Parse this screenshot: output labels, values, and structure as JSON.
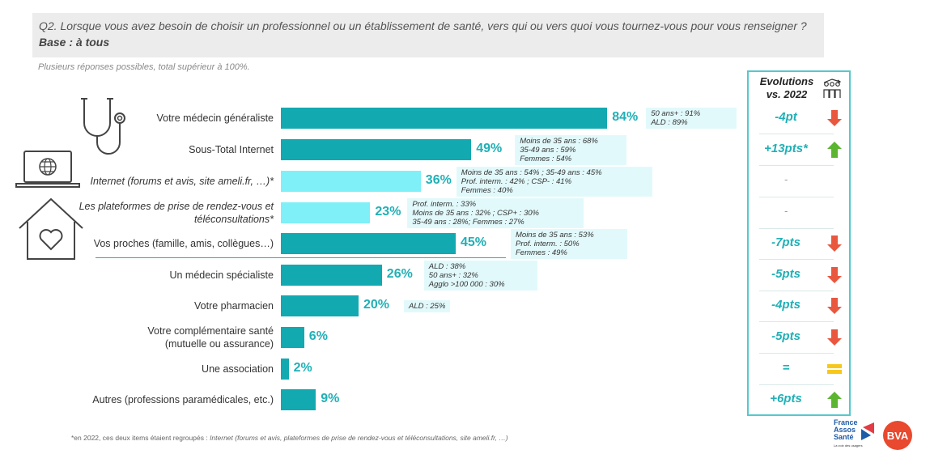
{
  "question": "Q2. Lorsque vous avez besoin de choisir un professionnel ou un établissement de santé, vers qui ou vers quoi vous tournez-vous pour vous renseigner ?",
  "base": "Base : à tous",
  "note": "Plusieurs réponses possibles, total supérieur à 100%.",
  "evolution_title": [
    "Evolutions",
    "vs. 2022"
  ],
  "footnote_prefix": "*en 2022, ces deux items étaient regroupés : ",
  "footnote_italic": "Internet (forums et avis, plateformes de prise de rendez-vous et téléconsultations, site ameli.fr, …)",
  "logos": {
    "france_assos": [
      "France",
      "Assos",
      "Santé",
      "La voix des usagers"
    ],
    "bva": "BVA"
  },
  "colors": {
    "bar_main": "#12a9b1",
    "bar_light": "#7ff0f7",
    "value_text": "#20b0b6",
    "down": "#e9573f",
    "up": "#5cb531",
    "equal": "#f7c81b"
  },
  "chart_data": {
    "type": "bar",
    "orientation": "horizontal",
    "unit": "%",
    "xlim": [
      0,
      100
    ],
    "rows": [
      {
        "label": [
          "Votre médecin généraliste"
        ],
        "value": 84,
        "value_label": "84%",
        "sub_item": false,
        "details": [
          "50 ans+ : 91%",
          "ALD : 89%"
        ],
        "evolution": "-4pt",
        "trend": "down"
      },
      {
        "label": [
          "Sous-Total Internet"
        ],
        "value": 49,
        "value_label": "49%",
        "sub_item": false,
        "details": [
          "Moins de 35 ans : 68%",
          "35-49 ans : 59%",
          "Femmes : 54%"
        ],
        "evolution": "+13pts*",
        "trend": "up"
      },
      {
        "label": [
          "Internet (forums et avis, site ameli.fr, …)*"
        ],
        "value": 36,
        "value_label": "36%",
        "sub_item": true,
        "details": [
          "Moins de 35 ans : 54% ; 35-49  ans : 45%",
          "Prof. interm. : 42% ; CSP- : 41%",
          "Femmes : 40%"
        ],
        "evolution": "-",
        "trend": "none"
      },
      {
        "label": [
          "Les plateformes de prise de rendez-vous et",
          "téléconsultations*"
        ],
        "value": 23,
        "value_label": "23%",
        "sub_item": true,
        "details": [
          "Prof. interm. : 33%",
          "Moins de 35 ans : 32% ; CSP+ : 30%",
          "35-49 ans : 28%; Femmes : 27%"
        ],
        "evolution": "-",
        "trend": "none"
      },
      {
        "label": [
          "Vos proches (famille, amis, collègues…)"
        ],
        "value": 45,
        "value_label": "45%",
        "sub_item": false,
        "details": [
          "Moins de 35 ans : 53%",
          "Prof. interm. : 50%",
          "Femmes : 49%"
        ],
        "evolution": "-7pts",
        "trend": "down"
      },
      {
        "label": [
          "Un médecin spécialiste"
        ],
        "value": 26,
        "value_label": "26%",
        "sub_item": false,
        "details": [
          "ALD : 38%",
          "50 ans+ : 32%",
          "Agglo >100 000 : 30%"
        ],
        "evolution": "-5pts",
        "trend": "down"
      },
      {
        "label": [
          "Votre pharmacien"
        ],
        "value": 20,
        "value_label": "20%",
        "sub_item": false,
        "details": [
          "ALD : 25%"
        ],
        "evolution": "-4pts",
        "trend": "down"
      },
      {
        "label": [
          "Votre complémentaire santé",
          "(mutuelle ou assurance)"
        ],
        "value": 6,
        "value_label": "6%",
        "sub_item": false,
        "details": [],
        "evolution": "-5pts",
        "trend": "down"
      },
      {
        "label": [
          "Une association"
        ],
        "value": 2,
        "value_label": "2%",
        "sub_item": false,
        "details": [],
        "evolution": "=",
        "trend": "equal"
      },
      {
        "label": [
          "Autres (professions paramédicales, etc.)"
        ],
        "value": 9,
        "value_label": "9%",
        "sub_item": false,
        "details": [],
        "evolution": "+6pts",
        "trend": "up"
      }
    ]
  }
}
